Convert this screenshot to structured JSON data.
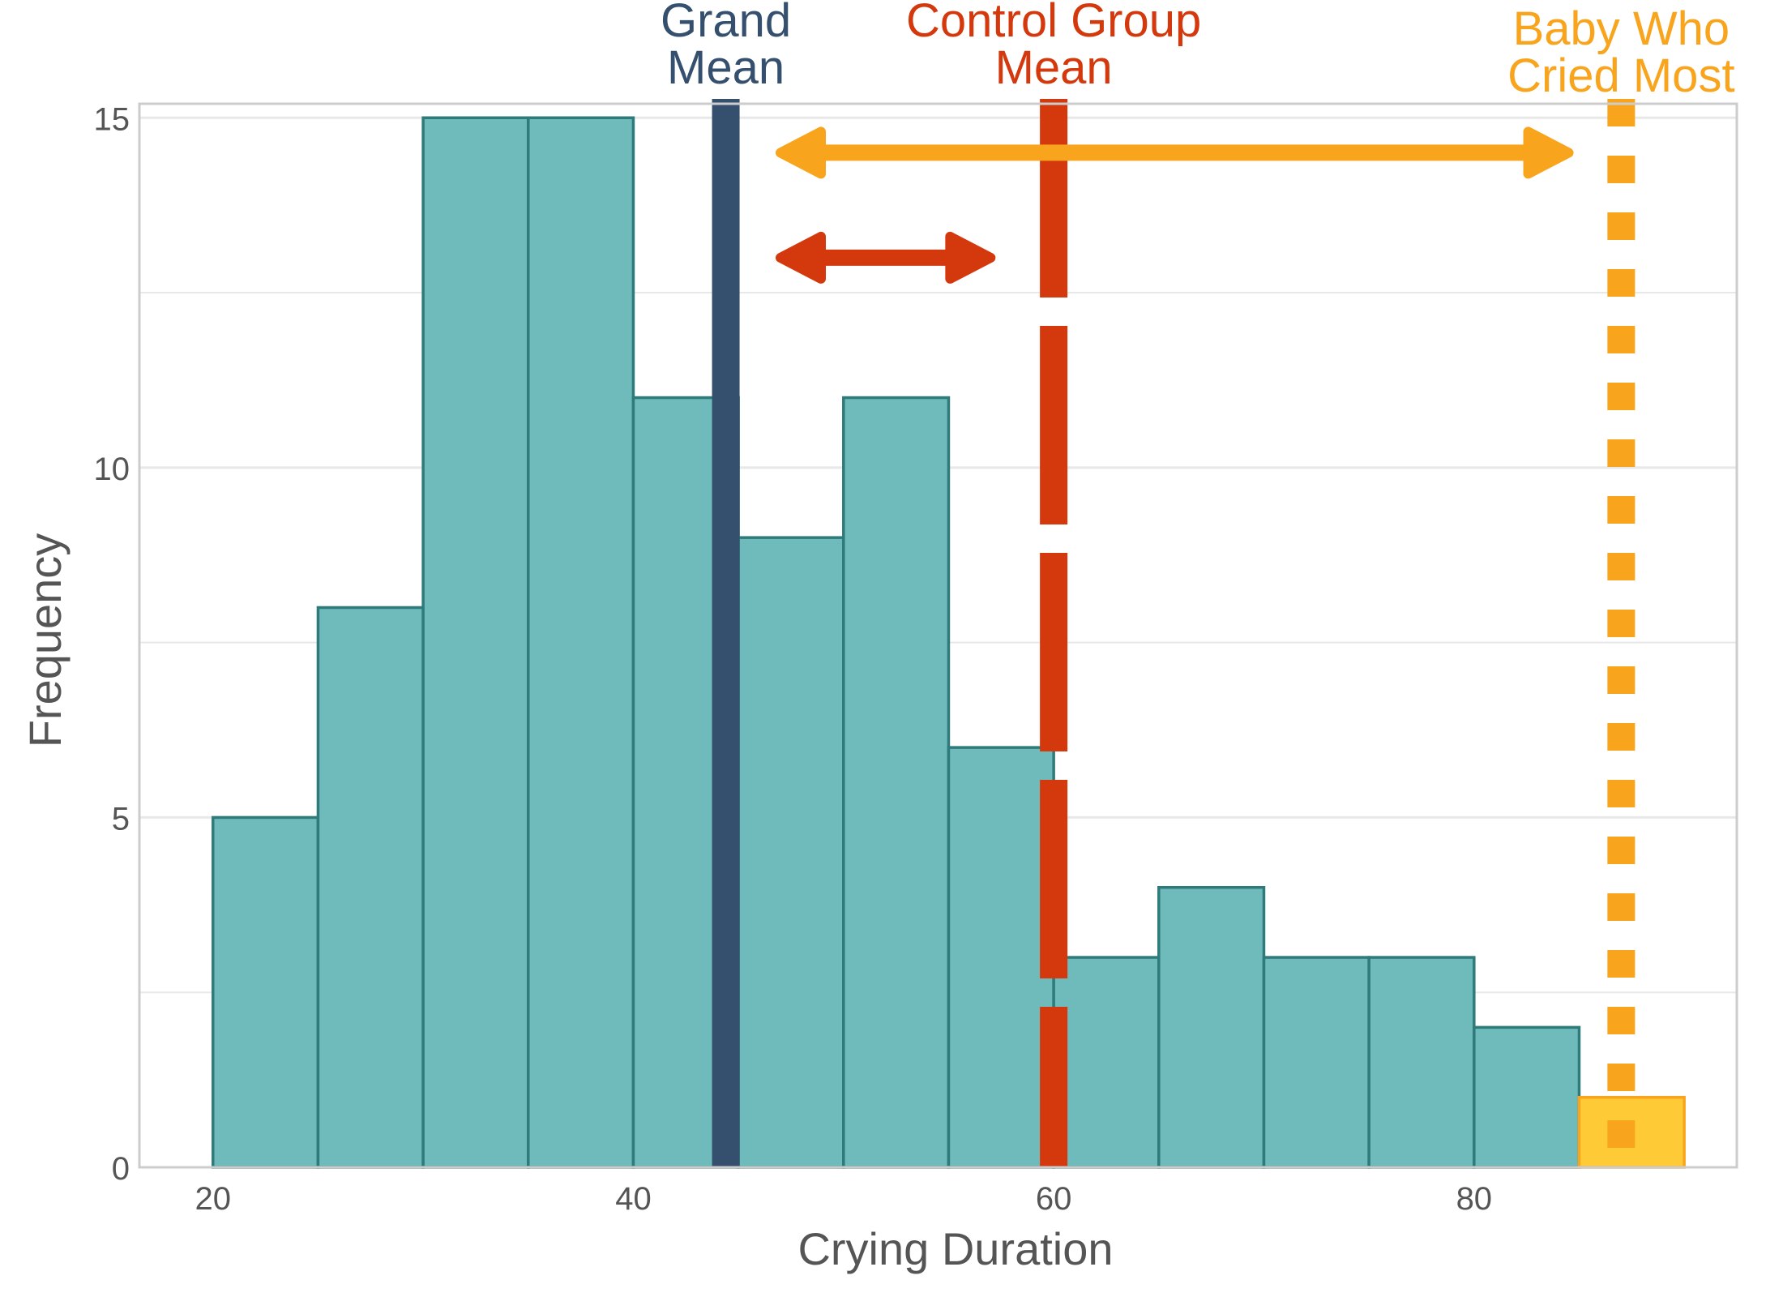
{
  "chart_data": {
    "type": "histogram",
    "xlabel": "Crying Duration",
    "ylabel": "Frequency",
    "xlim": [
      16.5,
      92.5
    ],
    "ylim": [
      0,
      15.2
    ],
    "x_ticks": [
      20,
      40,
      60,
      80
    ],
    "y_ticks": [
      0,
      5,
      10,
      15
    ],
    "grid": true,
    "bin_width": 5,
    "bins": [
      {
        "start": 20,
        "end": 25,
        "count": 5
      },
      {
        "start": 25,
        "end": 30,
        "count": 8
      },
      {
        "start": 30,
        "end": 35,
        "count": 15
      },
      {
        "start": 35,
        "end": 40,
        "count": 15
      },
      {
        "start": 40,
        "end": 45,
        "count": 11
      },
      {
        "start": 45,
        "end": 50,
        "count": 9
      },
      {
        "start": 50,
        "end": 55,
        "count": 11
      },
      {
        "start": 55,
        "end": 60,
        "count": 6
      },
      {
        "start": 60,
        "end": 65,
        "count": 3
      },
      {
        "start": 65,
        "end": 70,
        "count": 4
      },
      {
        "start": 70,
        "end": 75,
        "count": 3
      },
      {
        "start": 75,
        "end": 80,
        "count": 3
      },
      {
        "start": 80,
        "end": 85,
        "count": 2
      },
      {
        "start": 85,
        "end": 90,
        "count": 1,
        "highlight": true
      }
    ],
    "reference_lines": [
      {
        "label": "Grand Mean",
        "x": 44.4,
        "style": "solid",
        "color": "#34506e"
      },
      {
        "label": "Control Group Mean",
        "x": 60,
        "style": "dashed",
        "color": "#d4380d"
      },
      {
        "label": "Baby Who Cried Most",
        "x": 87,
        "style": "dotted",
        "color": "#f8a41d"
      }
    ],
    "arrows": [
      {
        "from": 47,
        "to": 84.5,
        "y": 14.5,
        "color": "#f8a41d"
      },
      {
        "from": 47,
        "to": 57,
        "y": 13,
        "color": "#d4380d"
      }
    ],
    "colors": {
      "bar_fill": "#6fbbbc",
      "bar_stroke": "#2f7b7b",
      "highlight_fill": "#fecb36",
      "highlight_stroke": "#f8a41d",
      "grid": "#e8e8e8",
      "frame": "#cccccc",
      "axis_text": "#555555"
    }
  }
}
